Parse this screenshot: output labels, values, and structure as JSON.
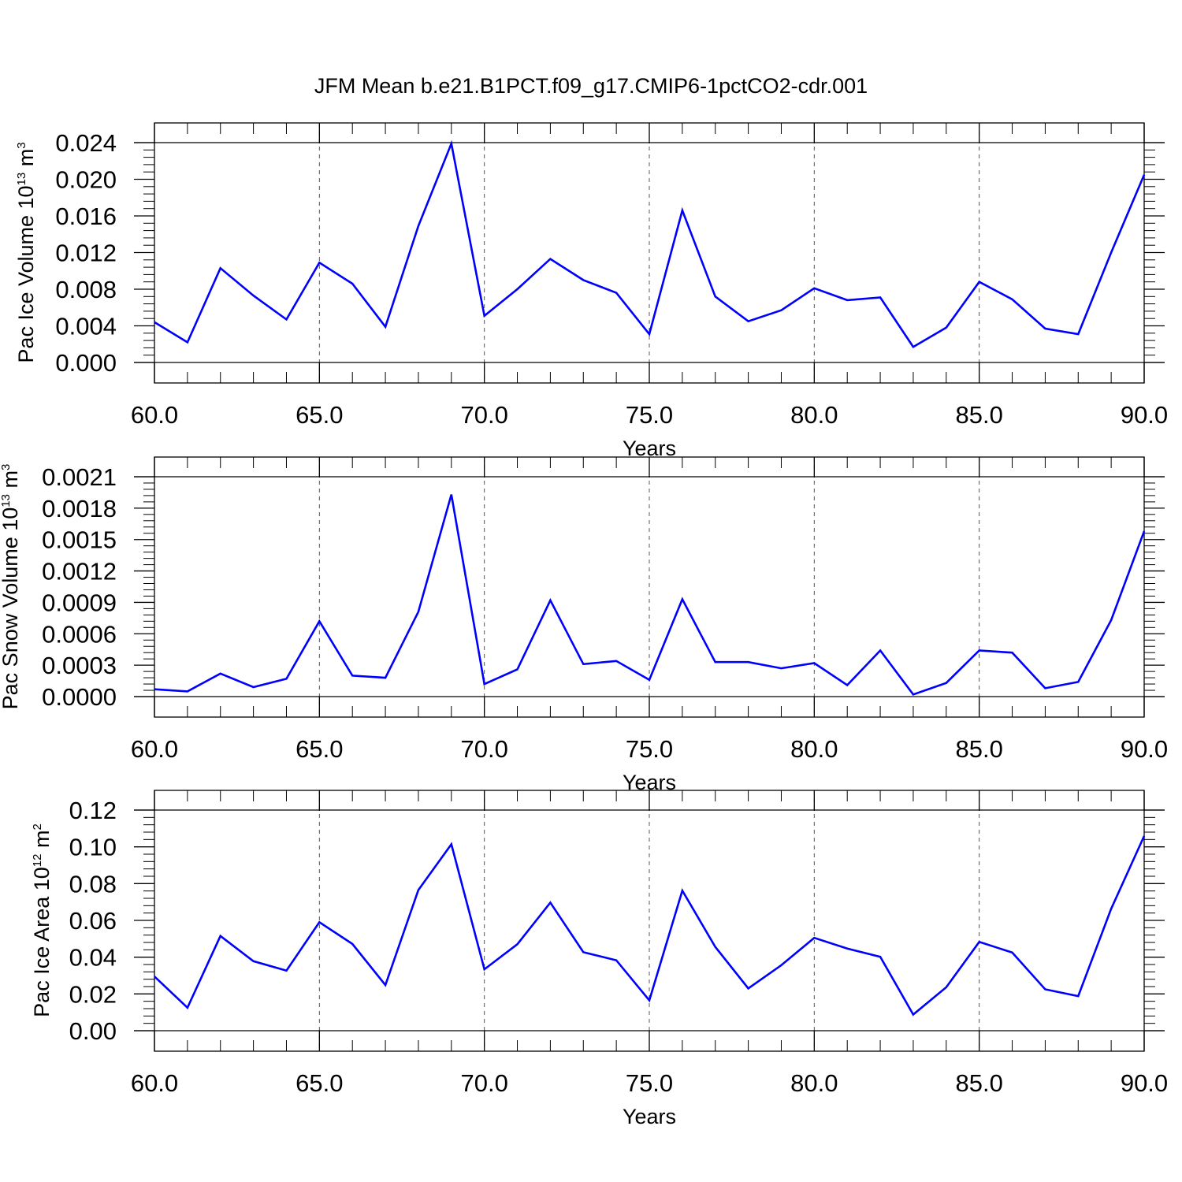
{
  "title": "JFM Mean b.e21.B1PCT.f09_g17.CMIP6-1pctCO2-cdr.001",
  "line_color": "#0000ff",
  "chart_data": [
    {
      "type": "line",
      "xlabel": "Years",
      "ylabel": {
        "text": "Pac Ice Volume 10",
        "sup": "13",
        "unit": " m",
        "unit_sup": "3"
      },
      "xlim": [
        60,
        90
      ],
      "ylim": [
        0,
        0.024
      ],
      "x_ticks": [
        "60.0",
        "65.0",
        "70.0",
        "75.0",
        "80.0",
        "85.0",
        "90.0"
      ],
      "y_ticks": [
        "0.000",
        "0.004",
        "0.008",
        "0.012",
        "0.016",
        "0.020",
        "0.024"
      ],
      "x": [
        60,
        61,
        62,
        63,
        64,
        65,
        66,
        67,
        68,
        69,
        70,
        71,
        72,
        73,
        74,
        75,
        76,
        77,
        78,
        79,
        80,
        81,
        82,
        83,
        84,
        85,
        86,
        87,
        88,
        89,
        90
      ],
      "values": [
        0.0044,
        0.0022,
        0.0103,
        0.0073,
        0.0047,
        0.0109,
        0.0086,
        0.0039,
        0.0149,
        0.0239,
        0.0051,
        0.008,
        0.0113,
        0.009,
        0.0076,
        0.0031,
        0.0166,
        0.0072,
        0.0045,
        0.0057,
        0.0081,
        0.0068,
        0.0071,
        0.0017,
        0.0038,
        0.0088,
        0.0069,
        0.0037,
        0.0031,
        0.012,
        0.0205
      ]
    },
    {
      "type": "line",
      "xlabel": "Years",
      "ylabel": {
        "text": "Pac Snow Volume 10",
        "sup": "13",
        "unit": " m",
        "unit_sup": "3"
      },
      "xlim": [
        60,
        90
      ],
      "ylim": [
        0,
        0.0021
      ],
      "x_ticks": [
        "60.0",
        "65.0",
        "70.0",
        "75.0",
        "80.0",
        "85.0",
        "90.0"
      ],
      "y_ticks": [
        "0.0000",
        "0.0003",
        "0.0006",
        "0.0009",
        "0.0012",
        "0.0015",
        "0.0018",
        "0.0021"
      ],
      "x": [
        60,
        61,
        62,
        63,
        64,
        65,
        66,
        67,
        68,
        69,
        70,
        71,
        72,
        73,
        74,
        75,
        76,
        77,
        78,
        79,
        80,
        81,
        82,
        83,
        84,
        85,
        86,
        87,
        88,
        89,
        90
      ],
      "values": [
        7e-05,
        5e-05,
        0.00022,
        9e-05,
        0.00017,
        0.00072,
        0.0002,
        0.00018,
        0.00081,
        0.00193,
        0.00012,
        0.00026,
        0.00092,
        0.00031,
        0.00034,
        0.00016,
        0.00093,
        0.00033,
        0.00033,
        0.00027,
        0.00032,
        0.00011,
        0.00044,
        2e-05,
        0.00013,
        0.00044,
        0.00042,
        8e-05,
        0.00014,
        0.00073,
        0.00158
      ]
    },
    {
      "type": "line",
      "xlabel": "Years",
      "ylabel": {
        "text": "Pac Ice Area 10",
        "sup": "12",
        "unit": " m",
        "unit_sup": "2"
      },
      "xlim": [
        60,
        90
      ],
      "ylim": [
        0,
        0.12
      ],
      "x_ticks": [
        "60.0",
        "65.0",
        "70.0",
        "75.0",
        "80.0",
        "85.0",
        "90.0"
      ],
      "y_ticks": [
        "0.00",
        "0.02",
        "0.04",
        "0.06",
        "0.08",
        "0.10",
        "0.12"
      ],
      "x": [
        60,
        61,
        62,
        63,
        64,
        65,
        66,
        67,
        68,
        69,
        70,
        71,
        72,
        73,
        74,
        75,
        76,
        77,
        78,
        79,
        80,
        81,
        82,
        83,
        84,
        85,
        86,
        87,
        88,
        89,
        90
      ],
      "values": [
        0.0295,
        0.0125,
        0.0515,
        0.0378,
        0.0327,
        0.059,
        0.0472,
        0.0248,
        0.0765,
        0.1014,
        0.0334,
        0.047,
        0.0697,
        0.0427,
        0.0383,
        0.0165,
        0.0762,
        0.0456,
        0.023,
        0.0356,
        0.0505,
        0.0447,
        0.0402,
        0.0088,
        0.0236,
        0.0483,
        0.0425,
        0.0225,
        0.0188,
        0.0663,
        0.1059
      ]
    }
  ]
}
